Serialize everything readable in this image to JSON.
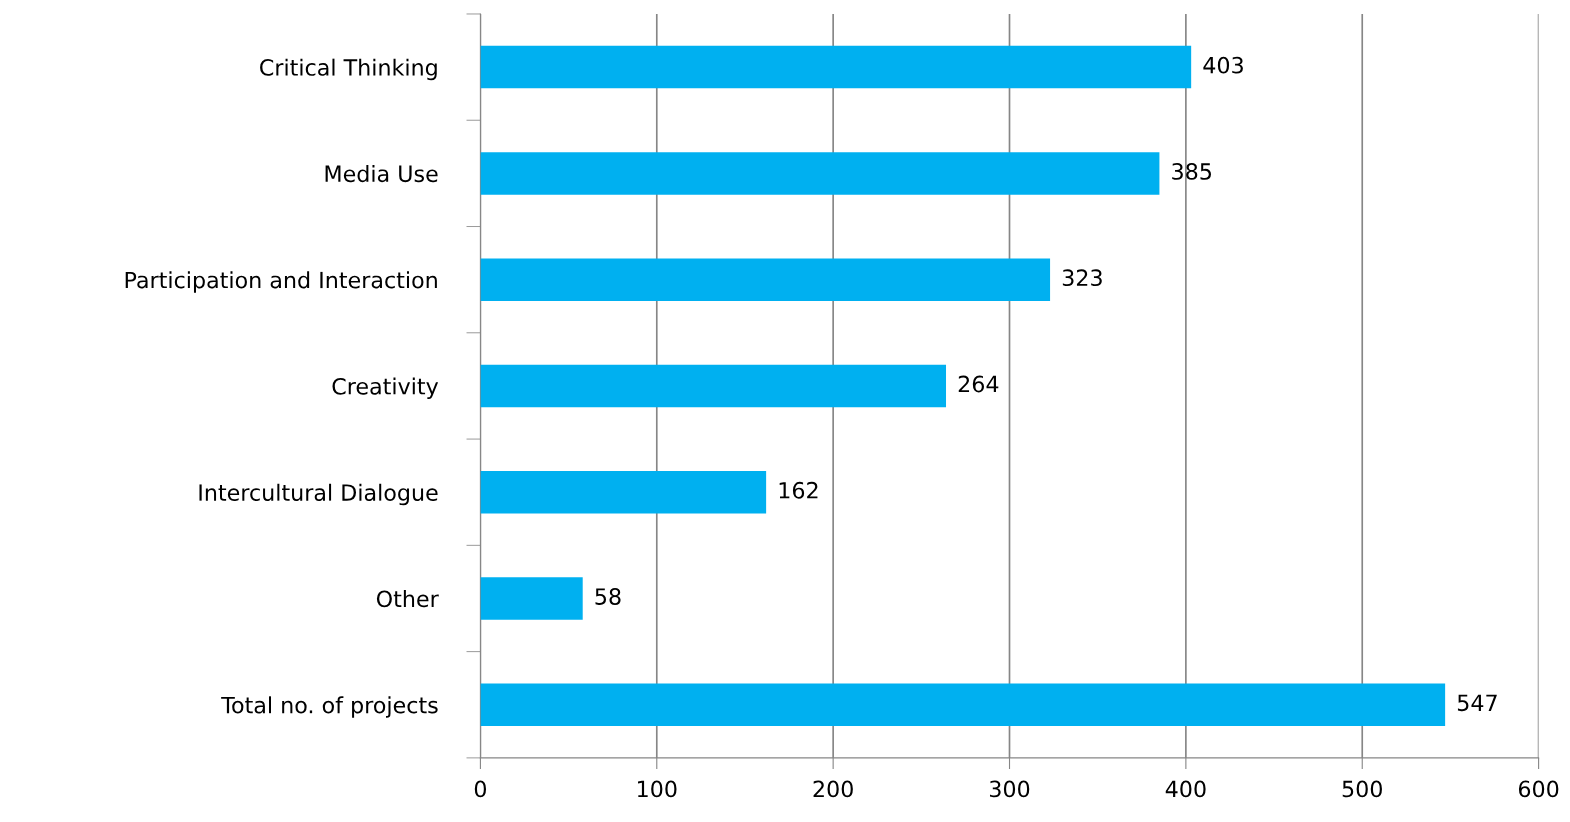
{
  "chart_data": {
    "type": "bar",
    "orientation": "horizontal",
    "categories": [
      "Critical Thinking",
      "Media Use",
      "Participation and Interaction",
      "Creativity",
      "Intercultural Dialogue",
      "Other",
      "Total no. of projects"
    ],
    "values": [
      403,
      385,
      323,
      264,
      162,
      58,
      547
    ],
    "color": "#00b0f0",
    "xlim": [
      0,
      600
    ],
    "xticks": [
      0,
      100,
      200,
      300,
      400,
      500,
      600
    ],
    "grid": "x",
    "data_labels": true
  }
}
